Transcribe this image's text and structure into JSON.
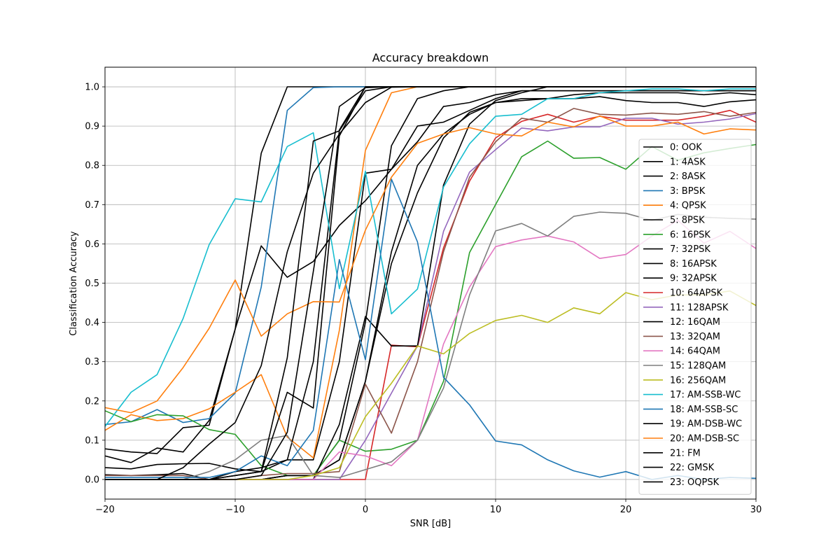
{
  "chart_data": {
    "type": "line",
    "title": "Accuracy breakdown",
    "xlabel": "SNR [dB]",
    "ylabel": "Classification Accuracy",
    "xlim": [
      -20,
      30
    ],
    "ylim": [
      -0.05,
      1.05
    ],
    "xticks": [
      -20,
      -10,
      0,
      10,
      20,
      30
    ],
    "xtick_labels": [
      "−20",
      "−10",
      "0",
      "10",
      "20",
      "30"
    ],
    "yticks": [
      0.0,
      0.1,
      0.2,
      0.3,
      0.4,
      0.5,
      0.6,
      0.7,
      0.8,
      0.9,
      1.0
    ],
    "ytick_labels": [
      "0.0",
      "0.1",
      "0.2",
      "0.3",
      "0.4",
      "0.5",
      "0.6",
      "0.7",
      "0.8",
      "0.9",
      "1.0"
    ],
    "grid": true,
    "legend_position": "right",
    "x": [
      -20,
      -18,
      -16,
      -14,
      -12,
      -10,
      -8,
      -6,
      -4,
      -2,
      0,
      2,
      4,
      6,
      8,
      10,
      12,
      14,
      16,
      18,
      20,
      22,
      24,
      26,
      28,
      30
    ],
    "series": [
      {
        "name": "0: OOK",
        "color": "#000000",
        "values": [
          0.03,
          0.027,
          0.038,
          0.04,
          0.041,
          0.027,
          0.02,
          0.05,
          0.05,
          0.3,
          0.78,
          0.79,
          0.86,
          0.95,
          0.96,
          0.98,
          0.99,
          0.99,
          0.99,
          0.99,
          0.99,
          0.99,
          0.99,
          0.99,
          0.99,
          0.99
        ]
      },
      {
        "name": "1: 4ASK",
        "color": "#000000",
        "values": [
          0.078,
          0.07,
          0.066,
          0.132,
          0.138,
          0.383,
          0.831,
          1.0,
          1.0,
          1.0,
          1.0,
          1.0,
          1.0,
          1.0,
          1.0,
          1.0,
          1.0,
          1.0,
          1.0,
          1.0,
          1.0,
          1.0,
          1.0,
          1.0,
          1.0,
          1.0
        ]
      },
      {
        "name": "2: 8ASK",
        "color": "#000000",
        "values": [
          0.06,
          0.043,
          0.08,
          0.07,
          0.15,
          0.383,
          0.595,
          0.515,
          0.555,
          0.647,
          0.71,
          0.79,
          0.9,
          0.91,
          0.94,
          0.97,
          0.99,
          0.99,
          0.99,
          0.99,
          0.99,
          0.99,
          0.99,
          0.99,
          0.99,
          0.99
        ]
      },
      {
        "name": "3: BPSK",
        "color": "#1f77b4",
        "values": [
          0.14,
          0.147,
          0.178,
          0.145,
          0.155,
          0.22,
          0.49,
          0.94,
          0.998,
          1.0,
          1.0,
          1.0,
          1.0,
          1.0,
          1.0,
          1.0,
          1.0,
          1.0,
          1.0,
          1.0,
          1.0,
          1.0,
          1.0,
          1.0,
          1.0,
          1.0
        ]
      },
      {
        "name": "4: QPSK",
        "color": "#ff7f0e",
        "values": [
          0.125,
          0.165,
          0.15,
          0.155,
          0.18,
          0.222,
          0.267,
          0.108,
          0.055,
          0.38,
          0.838,
          0.985,
          1.0,
          1.0,
          1.0,
          1.0,
          1.0,
          1.0,
          1.0,
          1.0,
          1.0,
          1.0,
          1.0,
          1.0,
          1.0,
          1.0
        ]
      },
      {
        "name": "5: 8PSK",
        "color": "#000000",
        "values": [
          0.0,
          0.0,
          0.0,
          0.0,
          0.0,
          0.0,
          0.0,
          0.01,
          0.01,
          0.1,
          0.4,
          0.85,
          0.97,
          0.99,
          1.0,
          1.0,
          1.0,
          1.0,
          1.0,
          1.0,
          1.0,
          1.0,
          1.0,
          1.0,
          1.0,
          1.0
        ]
      },
      {
        "name": "6: 16PSK",
        "color": "#2ca02c",
        "values": [
          0.175,
          0.147,
          0.165,
          0.162,
          0.127,
          0.115,
          0.035,
          0.01,
          0.01,
          0.1,
          0.072,
          0.077,
          0.1,
          0.25,
          0.578,
          0.7,
          0.822,
          0.862,
          0.818,
          0.82,
          0.79,
          0.848,
          0.813,
          0.832,
          0.843,
          0.853
        ]
      },
      {
        "name": "7: 32PSK",
        "color": "#000000",
        "values": [
          0.0,
          0.0,
          0.0,
          0.0,
          0.0,
          0.0,
          0.0,
          0.01,
          0.01,
          0.05,
          0.25,
          0.55,
          0.73,
          0.87,
          0.935,
          0.96,
          0.965,
          0.97,
          0.97,
          0.975,
          0.965,
          0.96,
          0.96,
          0.95,
          0.962,
          0.967
        ]
      },
      {
        "name": "8: 16APSK",
        "color": "#000000",
        "values": [
          0.012,
          0.01,
          0.012,
          0.015,
          0.0,
          0.02,
          0.03,
          0.05,
          0.3,
          0.89,
          1.0,
          1.0,
          1.0,
          1.0,
          1.0,
          1.0,
          1.0,
          1.0,
          1.0,
          1.0,
          1.0,
          1.0,
          1.0,
          1.0,
          1.0,
          1.0
        ]
      },
      {
        "name": "9: 32APSK",
        "color": "#000000",
        "values": [
          0.0,
          0.0,
          0.0,
          0.0,
          0.0,
          0.0,
          0.0,
          0.01,
          0.01,
          0.05,
          0.25,
          0.58,
          0.8,
          0.88,
          0.93,
          0.96,
          0.97,
          0.97,
          0.98,
          0.985,
          0.985,
          0.985,
          0.985,
          0.98,
          0.985,
          0.98
        ]
      },
      {
        "name": "10: 64APSK",
        "color": "#d62728",
        "values": [
          0.0,
          0.0,
          0.0,
          0.0,
          0.0,
          0.0,
          0.0,
          0.0,
          0.0,
          0.0,
          0.0,
          0.342,
          0.338,
          0.59,
          0.76,
          0.87,
          0.912,
          0.93,
          0.91,
          0.925,
          0.915,
          0.915,
          0.915,
          0.925,
          0.94,
          0.91
        ]
      },
      {
        "name": "11: 128APSK",
        "color": "#9467bd",
        "values": [
          0.0,
          0.0,
          0.0,
          0.0,
          0.0,
          0.0,
          0.0,
          0.0,
          0.0,
          0.0,
          0.1,
          0.22,
          0.34,
          0.632,
          0.783,
          0.84,
          0.895,
          0.888,
          0.898,
          0.898,
          0.92,
          0.92,
          0.905,
          0.91,
          0.918,
          0.932
        ]
      },
      {
        "name": "12: 16QAM",
        "color": "#000000",
        "values": [
          0.0,
          0.0,
          0.0,
          0.0,
          0.0,
          0.0,
          0.0,
          0.0,
          0.0,
          0.14,
          0.415,
          0.34,
          0.34,
          0.75,
          0.905,
          0.965,
          0.985,
          1.0,
          1.0,
          1.0,
          1.0,
          1.0,
          1.0,
          1.0,
          1.0,
          1.0
        ]
      },
      {
        "name": "13: 32QAM",
        "color": "#8c564b",
        "values": [
          0.01,
          0.01,
          0.01,
          0.01,
          0.0,
          0.0,
          0.01,
          0.015,
          0.015,
          0.02,
          0.243,
          0.118,
          0.3,
          0.58,
          0.77,
          0.86,
          0.92,
          0.91,
          0.945,
          0.93,
          0.928,
          0.933,
          0.93,
          0.937,
          0.925,
          0.935
        ]
      },
      {
        "name": "14: 64QAM",
        "color": "#e377c2",
        "values": [
          0.0,
          0.0,
          0.0,
          0.0,
          0.0,
          0.0,
          0.0,
          0.0,
          0.0,
          0.07,
          0.06,
          0.035,
          0.1,
          0.345,
          0.49,
          0.593,
          0.61,
          0.62,
          0.605,
          0.563,
          0.573,
          0.62,
          0.66,
          0.602,
          0.632,
          0.588
        ]
      },
      {
        "name": "15: 128QAM",
        "color": "#7f7f7f",
        "values": [
          0.0,
          0.0,
          0.0,
          0.0,
          0.02,
          0.05,
          0.1,
          0.112,
          0.01,
          0.005,
          0.025,
          0.045,
          0.1,
          0.233,
          0.47,
          0.633,
          0.652,
          0.62,
          0.67,
          0.681,
          0.678,
          0.66,
          0.675,
          0.668,
          0.665,
          0.663
        ]
      },
      {
        "name": "16: 256QAM",
        "color": "#bcbd22",
        "values": [
          0.0,
          0.0,
          0.0,
          0.0,
          0.0,
          0.0,
          0.0,
          0.0,
          0.01,
          0.03,
          0.16,
          0.245,
          0.34,
          0.32,
          0.372,
          0.405,
          0.418,
          0.4,
          0.437,
          0.422,
          0.476,
          0.458,
          0.47,
          0.47,
          0.48,
          0.443
        ]
      },
      {
        "name": "17: AM-SSB-WC",
        "color": "#17becf",
        "values": [
          0.135,
          0.222,
          0.267,
          0.41,
          0.598,
          0.715,
          0.707,
          0.848,
          0.883,
          0.486,
          0.785,
          0.422,
          0.485,
          0.745,
          0.855,
          0.925,
          0.93,
          0.97,
          0.97,
          0.985,
          0.99,
          0.995,
          0.995,
          0.99,
          0.995,
          0.995
        ]
      },
      {
        "name": "18: AM-SSB-SC",
        "color": "#1f77b4",
        "values": [
          0.005,
          0.005,
          0.005,
          0.005,
          0.005,
          0.02,
          0.06,
          0.035,
          0.125,
          0.56,
          0.305,
          0.765,
          0.605,
          0.26,
          0.19,
          0.098,
          0.088,
          0.05,
          0.022,
          0.006,
          0.02,
          0.0,
          0.01,
          0.0,
          0.005,
          0.003
        ]
      },
      {
        "name": "19: AM-DSB-WC",
        "color": "#000000",
        "values": [
          0.0,
          0.0,
          0.0,
          0.0,
          0.0,
          0.01,
          0.02,
          0.222,
          0.182,
          0.875,
          1.0,
          1.0,
          1.0,
          1.0,
          1.0,
          1.0,
          1.0,
          1.0,
          1.0,
          1.0,
          1.0,
          1.0,
          1.0,
          1.0,
          1.0,
          1.0
        ]
      },
      {
        "name": "20: AM-DSB-SC",
        "color": "#ff7f0e",
        "values": [
          0.183,
          0.17,
          0.2,
          0.285,
          0.385,
          0.508,
          0.365,
          0.422,
          0.453,
          0.452,
          0.635,
          0.77,
          0.856,
          0.88,
          0.896,
          0.88,
          0.875,
          0.91,
          0.898,
          0.926,
          0.9,
          0.9,
          0.91,
          0.88,
          0.893,
          0.89
        ]
      },
      {
        "name": "21: FM",
        "color": "#000000",
        "values": [
          0.0,
          0.0,
          0.0,
          0.0,
          0.0,
          0.0,
          0.01,
          0.12,
          0.53,
          0.95,
          0.998,
          1.0,
          1.0,
          1.0,
          1.0,
          1.0,
          1.0,
          1.0,
          1.0,
          1.0,
          1.0,
          1.0,
          1.0,
          1.0,
          1.0,
          1.0
        ]
      },
      {
        "name": "22: GMSK",
        "color": "#000000",
        "values": [
          0.0,
          0.0,
          0.0,
          0.03,
          0.09,
          0.145,
          0.29,
          0.58,
          0.78,
          0.88,
          0.96,
          0.999,
          1.0,
          1.0,
          1.0,
          1.0,
          1.0,
          1.0,
          1.0,
          1.0,
          1.0,
          1.0,
          1.0,
          1.0,
          1.0,
          1.0
        ]
      },
      {
        "name": "23: OQPSK",
        "color": "#000000",
        "values": [
          0.0,
          0.0,
          0.0,
          0.0,
          0.0,
          0.01,
          0.02,
          0.31,
          0.862,
          0.888,
          0.99,
          1.0,
          1.0,
          1.0,
          1.0,
          1.0,
          1.0,
          1.0,
          1.0,
          1.0,
          1.0,
          1.0,
          1.0,
          1.0,
          1.0,
          1.0
        ]
      }
    ]
  }
}
